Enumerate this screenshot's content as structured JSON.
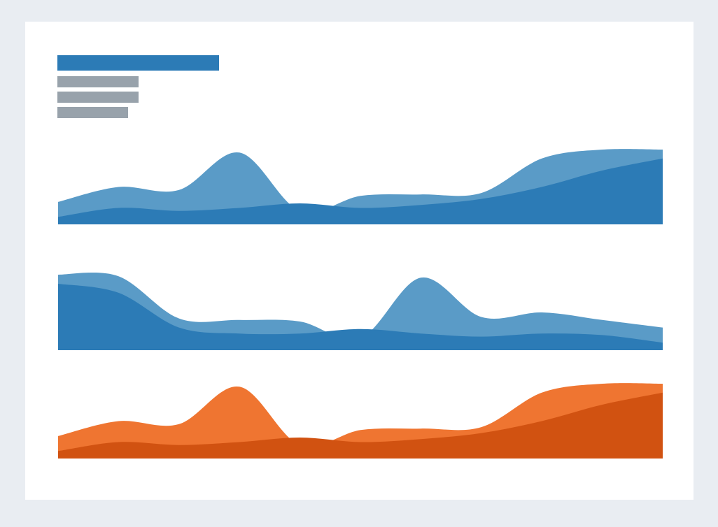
{
  "colors": {
    "page_background": "#E9EDF2",
    "card_background": "#FFFFFF",
    "title_placeholder": "#2C7BB6",
    "subtitle_placeholder": "#98A2AB"
  },
  "chart_data": [
    {
      "type": "area",
      "x": [
        0,
        10,
        20,
        30,
        40,
        50,
        60,
        70,
        80,
        90,
        100
      ],
      "ylim": [
        0,
        100
      ],
      "series": [
        {
          "color": "#5A9BC7",
          "values": [
            30,
            50,
            46,
            96,
            18,
            38,
            40,
            42,
            88,
            100,
            100
          ]
        },
        {
          "color": "#2C7BB6",
          "values": [
            10,
            22,
            18,
            22,
            28,
            22,
            26,
            34,
            50,
            72,
            88
          ]
        }
      ]
    },
    {
      "type": "area",
      "x": [
        0,
        10,
        20,
        30,
        40,
        50,
        60,
        70,
        80,
        90,
        100
      ],
      "ylim": [
        0,
        100
      ],
      "series": [
        {
          "color": "#5A9BC7",
          "values": [
            100,
            98,
            42,
            40,
            38,
            16,
            96,
            44,
            50,
            40,
            30
          ]
        },
        {
          "color": "#2C7BB6",
          "values": [
            88,
            76,
            30,
            22,
            22,
            28,
            22,
            18,
            22,
            20,
            10
          ]
        }
      ]
    },
    {
      "type": "area",
      "x": [
        0,
        10,
        20,
        30,
        40,
        50,
        60,
        70,
        80,
        90,
        100
      ],
      "ylim": [
        0,
        100
      ],
      "series": [
        {
          "color": "#EF7531",
          "values": [
            30,
            50,
            46,
            96,
            18,
            38,
            40,
            42,
            88,
            100,
            100
          ]
        },
        {
          "color": "#D15211",
          "values": [
            10,
            22,
            18,
            22,
            28,
            22,
            26,
            34,
            50,
            72,
            88
          ]
        }
      ]
    }
  ]
}
